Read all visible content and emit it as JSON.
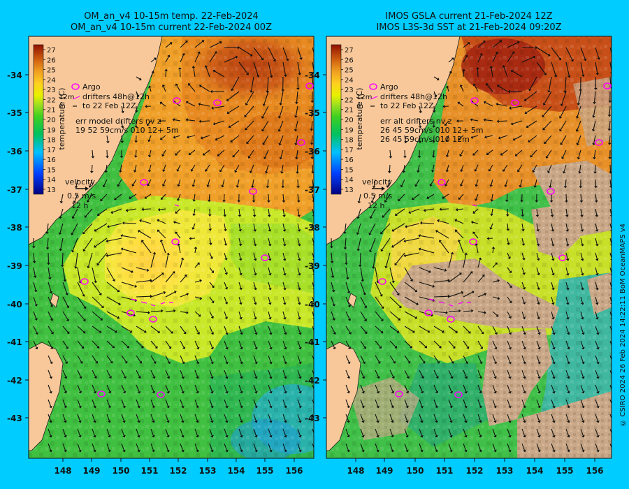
{
  "left_panel": {
    "title_line1": "OM_an_v4  10-15m temp. 22-Feb-2024",
    "title_line2": "OM_an_v4  10-15m current 22-Feb-2024 00Z",
    "legend": {
      "argo": "Argo",
      "drifters_line1": "drifters 48h@12h",
      "drifters_line2": "to 22 Feb 12Z",
      "marker_top": "12m",
      "marker_bottom": "m",
      "err_line1": "err model drifters nv z",
      "err_line2": "19 52 59cm/s 010 12+ 5m",
      "velocity_title": "velocity",
      "velocity_scale": "0.5 m/s",
      "velocity_time": "12 h"
    }
  },
  "right_panel": {
    "title_line1": "IMOS GSLA current 21-Feb-2024 12Z",
    "title_line2": "IMOS L3S-3d SST at 21-Feb-2024 09:20Z",
    "legend": {
      "argo": "Argo",
      "drifters_line1": "drifters 48h@12h",
      "drifters_line2": "to 22 Feb 12Z",
      "marker_top": "12m",
      "marker_bottom": "m",
      "err_line1": "err alt drifters nv z",
      "err_line2": "26 45 59cm/s 010 12+ 5m",
      "err_line3": "26 45 59cm/s 010 12m",
      "velocity_title": "velocity",
      "velocity_scale": "0.5 m/s",
      "velocity_time": "12 h"
    }
  },
  "colorbar": {
    "label": "temperature (C)",
    "ticks": [
      "27",
      "26",
      "25",
      "24",
      "23",
      "22",
      "21",
      "20",
      "19",
      "18",
      "17",
      "16",
      "15",
      "14",
      "13"
    ]
  },
  "axes": {
    "lat_ticks": [
      "-34",
      "-35",
      "-36",
      "-37",
      "-38",
      "-39",
      "-40",
      "-41",
      "-42",
      "-43"
    ],
    "lon_ticks": [
      "148",
      "149",
      "150",
      "151",
      "152",
      "153",
      "154",
      "155",
      "156"
    ]
  },
  "credit": "© CSIRO 2024   26 Feb 2024 14:22:11 BoM OceanMAPS v4",
  "colors": {
    "page_bg": "#00ccff",
    "land": "#f8c89a",
    "cloud_mask": "#c8a888",
    "argo_marker": "#ff00ff",
    "drifter_marker": "#ff00ff"
  }
}
